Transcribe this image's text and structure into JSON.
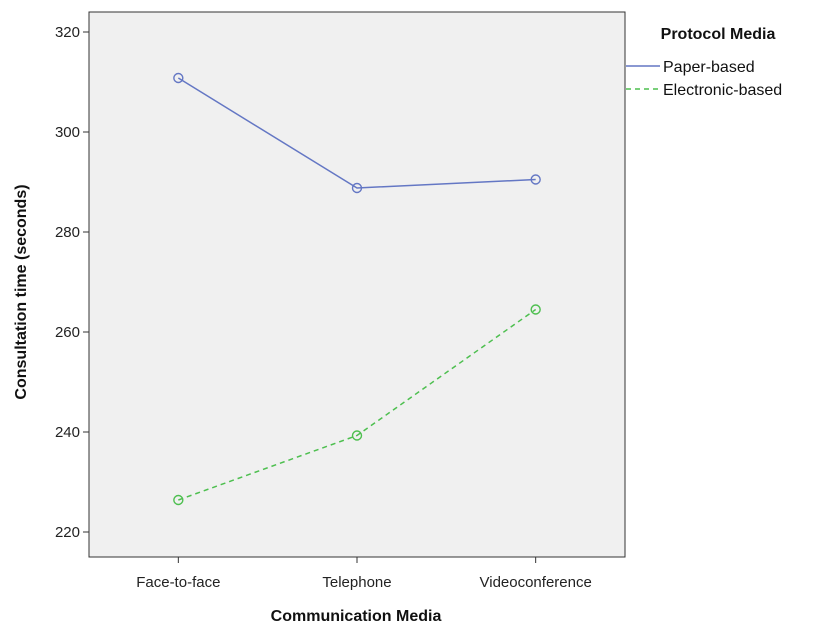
{
  "chart_data": {
    "type": "line",
    "title": "",
    "xlabel": "Communication Media",
    "ylabel": "Consultation time (seconds)",
    "categories": [
      "Face-to-face",
      "Telephone",
      "Videoconference"
    ],
    "ylim": [
      215,
      324
    ],
    "yticks": [
      220,
      240,
      260,
      280,
      300,
      320
    ],
    "grid": false,
    "legend": {
      "title": "Protocol Media",
      "placement": "right"
    },
    "series": [
      {
        "name": "Paper-based",
        "values": [
          310.8,
          288.8,
          290.5
        ],
        "color": "#6477c4",
        "dash": "solid",
        "marker": "circle"
      },
      {
        "name": "Electronic-based",
        "values": [
          226.4,
          239.3,
          264.5
        ],
        "color": "#4dbf4f",
        "dash": "dashed",
        "marker": "circle"
      }
    ],
    "plot_background": "#f0f0f0"
  }
}
